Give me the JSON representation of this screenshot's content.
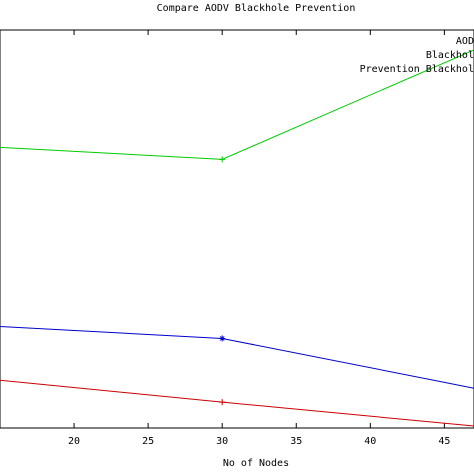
{
  "chart_data": {
    "type": "line",
    "title": "Compare AODV Blackhole Prevention",
    "xlabel": "No of Nodes",
    "ylabel": "",
    "xlim": [
      15,
      47
    ],
    "ylim": [
      0,
      100
    ],
    "xticks": [
      20,
      25,
      30,
      35,
      40,
      45
    ],
    "x": [
      15,
      30,
      47
    ],
    "grid": false,
    "legend_position": "top-right",
    "series": [
      {
        "name": "AODV",
        "color": "#0000cc",
        "marker": "*",
        "values": [
          25.5,
          22.5,
          10
        ]
      },
      {
        "name": "Blackhole",
        "color": "#cc0000",
        "marker": "+",
        "values": [
          12,
          6.5,
          0.5
        ]
      },
      {
        "name": "Prevention Blackhole",
        "color": "#00cc00",
        "marker": "+",
        "values": [
          70.5,
          67.5,
          95
        ]
      }
    ]
  }
}
